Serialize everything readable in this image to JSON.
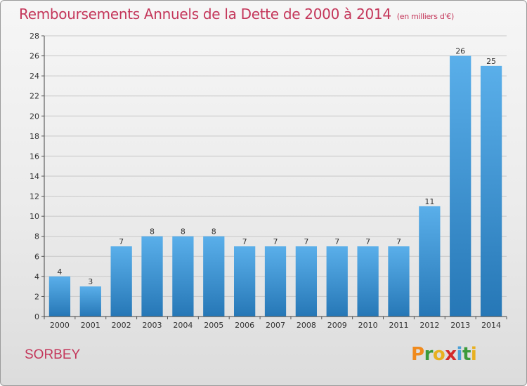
{
  "header": {
    "title": "Remboursements Annuels de la Dette de 2000 à 2014",
    "subtitle": "(en milliers d'€)"
  },
  "footer": {
    "commune": "SORBEY",
    "brand": "Proxiti",
    "brand_colors": [
      "#f08a1c",
      "#3a9a3a",
      "#e8b020",
      "#d42a2a",
      "#4aa0d8",
      "#3a9a3a",
      "#e8b020"
    ]
  },
  "colors": {
    "title": "#c4365a",
    "bar_light": "#5aafea",
    "bar_dark": "#2677b6",
    "grid": "#c8c8c8",
    "axis_text": "#333333"
  },
  "chart_data": {
    "type": "bar",
    "categories": [
      "2000",
      "2001",
      "2002",
      "2003",
      "2004",
      "2005",
      "2006",
      "2007",
      "2008",
      "2009",
      "2010",
      "2011",
      "2012",
      "2013",
      "2014"
    ],
    "values": [
      4,
      3,
      7,
      8,
      8,
      8,
      7,
      7,
      7,
      7,
      7,
      7,
      11,
      26,
      25
    ],
    "title": "Remboursements Annuels de la Dette de 2000 à 2014",
    "subtitle": "(en milliers d'€)",
    "xlabel": "",
    "ylabel": "",
    "ylim": [
      0,
      28
    ],
    "yticks": [
      0,
      2,
      4,
      6,
      8,
      10,
      12,
      14,
      16,
      18,
      20,
      22,
      24,
      26,
      28
    ],
    "grid": true,
    "legend": "none"
  }
}
